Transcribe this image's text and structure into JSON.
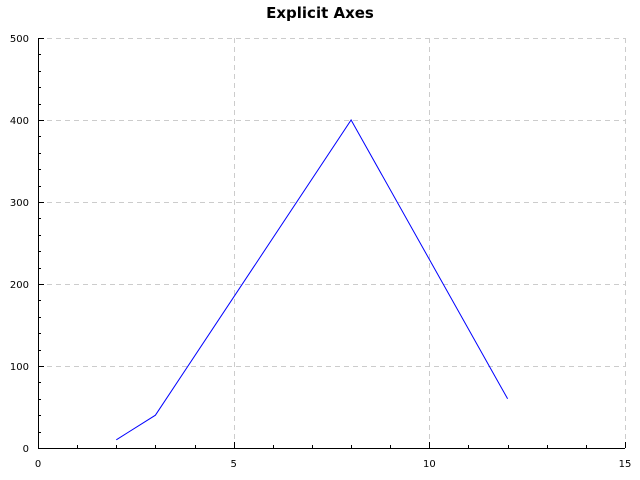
{
  "chart_data": {
    "type": "line",
    "title": "Explicit Axes",
    "xlabel": "",
    "ylabel": "",
    "xlim": [
      0,
      15
    ],
    "ylim": [
      0,
      500
    ],
    "x_ticks": [
      0,
      5,
      10,
      15
    ],
    "x_tick_labels": [
      "0",
      "5",
      "10",
      "15"
    ],
    "y_ticks": [
      0,
      100,
      200,
      300,
      400,
      500
    ],
    "y_tick_labels": [
      "0",
      "100",
      "200",
      "300",
      "400",
      "500"
    ],
    "grid": true,
    "legend": "none",
    "series": [
      {
        "color": "#0000ff",
        "x": [
          2,
          3,
          8,
          12
        ],
        "y": [
          10,
          40,
          400,
          60
        ]
      }
    ]
  }
}
